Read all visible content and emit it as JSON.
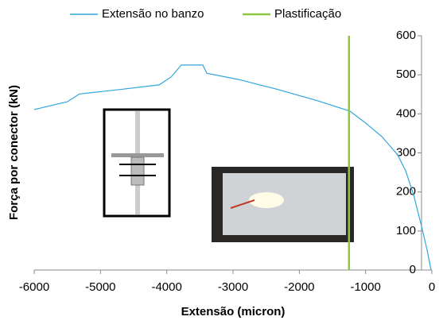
{
  "chart_data": {
    "type": "line",
    "x_label": "Extensão (micron)",
    "y_label": "Força por conector (kN)",
    "xlim": [
      -6000,
      0
    ],
    "xticks": [
      -6000,
      -5000,
      -4000,
      -3000,
      -2000,
      -1000,
      0
    ],
    "ylim": [
      0,
      600
    ],
    "yticks": [
      0,
      100,
      200,
      300,
      400,
      500,
      600
    ],
    "grid": false,
    "legend": "top",
    "series": [
      {
        "name": "Extensão no banzo",
        "color": "#2ea6dc",
        "x": [
          -6000,
          -5500,
          -5316,
          -4716,
          -4116,
          -3936,
          -3780,
          -3456,
          -3396,
          -2916,
          -2316,
          -1716,
          -1236,
          -996,
          -756,
          -516,
          -396,
          -276,
          -156,
          -72,
          -12
        ],
        "values": [
          411,
          431,
          451,
          462,
          474,
          494,
          525,
          525,
          504,
          488,
          462,
          433,
          407,
          376,
          342,
          295,
          254,
          193,
          112,
          51,
          0
        ]
      },
      {
        "name": "Plastificação",
        "color": "#8dc63f",
        "x": [
          -1250,
          -1250
        ],
        "values": [
          0,
          600
        ]
      }
    ]
  }
}
